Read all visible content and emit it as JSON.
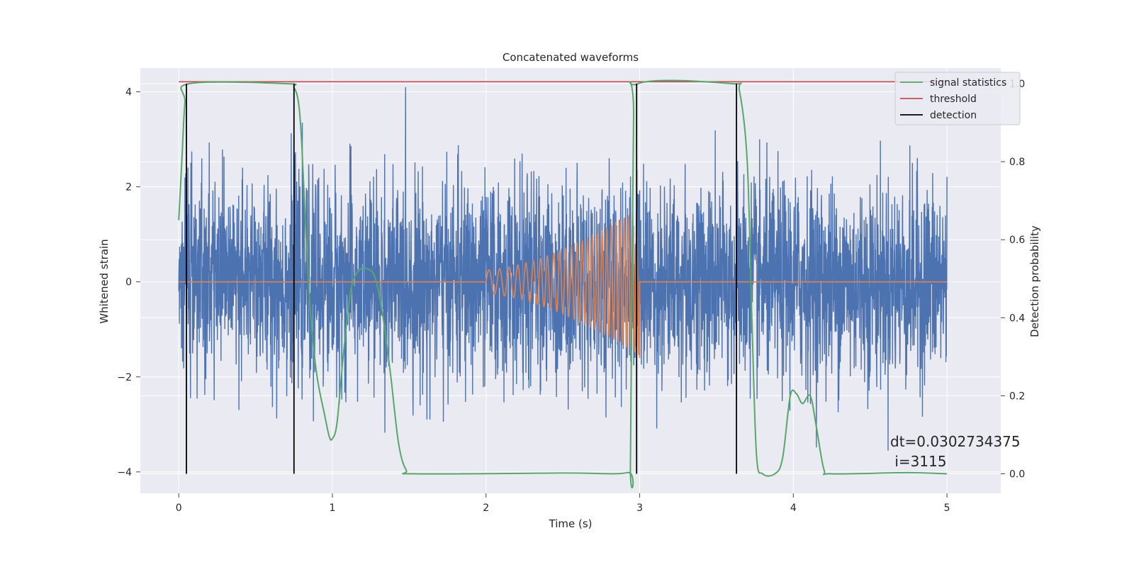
{
  "chart_data": {
    "type": "line",
    "title": "Concatenated waveforms",
    "xlabel": "Time (s)",
    "ylabel": "Whitened strain",
    "ylabel_right": "Detection probability",
    "xlim": [
      -0.25,
      5.35
    ],
    "ylim": [
      -4.45,
      4.5
    ],
    "ylim_right": [
      -0.05,
      1.04
    ],
    "xticks": [
      0,
      1,
      2,
      3,
      4,
      5
    ],
    "yticks": [
      -4,
      -2,
      0,
      2,
      4
    ],
    "yticks_right": [
      0.0,
      0.2,
      0.4,
      0.6,
      0.8,
      1.0
    ],
    "ytick_labels": [
      "−4",
      "−2",
      "0",
      "2",
      "4"
    ],
    "yticks_right_labels": [
      "0.0",
      "0.2",
      "0.4",
      "0.6",
      "0.8",
      "1.0"
    ],
    "grid": true,
    "legend_position": "top-right",
    "legend": [
      "signal statistics",
      "threshold",
      "detection"
    ],
    "colors": {
      "strain": "#4c72b0",
      "template": "#dd8452",
      "signal_statistics": "#55a868",
      "threshold": "#c44e52",
      "detection": "#000000",
      "background": "#eaeaf2",
      "grid": "#ffffff"
    },
    "series": [
      {
        "axis": "left",
        "role": "whitened strain noise",
        "color": "#4c72b0",
        "t_range": [
          0,
          5
        ],
        "amplitude_envelope": [
          -3.9,
          4.1
        ]
      },
      {
        "axis": "left",
        "role": "injected chirp",
        "color": "#dd8452",
        "chirp": {
          "t_start": 2.0,
          "t_end": 3.0,
          "amplitude_start": 0.25,
          "amplitude_end": 1.55,
          "value_outside": 0
        }
      },
      {
        "name": "signal statistics",
        "axis": "right",
        "color": "#55a868",
        "points": [
          [
            0.0,
            0.65
          ],
          [
            0.02,
            0.8
          ],
          [
            0.04,
            0.95
          ],
          [
            0.07,
            1.0
          ],
          [
            0.7,
            1.0
          ],
          [
            0.75,
            0.99
          ],
          [
            0.78,
            0.95
          ],
          [
            0.8,
            0.85
          ],
          [
            0.83,
            0.6
          ],
          [
            0.86,
            0.4
          ],
          [
            0.9,
            0.25
          ],
          [
            0.95,
            0.15
          ],
          [
            0.98,
            0.095
          ],
          [
            1.0,
            0.09
          ],
          [
            1.03,
            0.13
          ],
          [
            1.07,
            0.3
          ],
          [
            1.12,
            0.47
          ],
          [
            1.17,
            0.52
          ],
          [
            1.23,
            0.525
          ],
          [
            1.28,
            0.5
          ],
          [
            1.33,
            0.4
          ],
          [
            1.38,
            0.25
          ],
          [
            1.43,
            0.08
          ],
          [
            1.48,
            0.01
          ],
          [
            1.55,
            0.0
          ],
          [
            2.5,
            0.002
          ],
          [
            2.92,
            0.003
          ],
          [
            2.94,
            0.04
          ],
          [
            2.96,
            0.9
          ],
          [
            2.99,
            1.0
          ],
          [
            3.6,
            1.0
          ],
          [
            3.65,
            0.98
          ],
          [
            3.7,
            0.8
          ],
          [
            3.73,
            0.4
          ],
          [
            3.76,
            0.05
          ],
          [
            3.8,
            0.0
          ],
          [
            3.88,
            0.0
          ],
          [
            3.93,
            0.04
          ],
          [
            3.98,
            0.2
          ],
          [
            4.02,
            0.205
          ],
          [
            4.06,
            0.18
          ],
          [
            4.11,
            0.2
          ],
          [
            4.15,
            0.12
          ],
          [
            4.2,
            0.01
          ],
          [
            4.25,
            0.0
          ],
          [
            4.75,
            0.003
          ],
          [
            5.0,
            0.0
          ]
        ]
      },
      {
        "name": "threshold",
        "axis": "right",
        "color": "#c44e52",
        "points": [
          [
            0.0,
            1.005
          ],
          [
            5.0,
            1.005
          ]
        ]
      },
      {
        "name": "detection",
        "axis": "right",
        "color": "#000000",
        "x": [
          0.05,
          0.75,
          2.98,
          3.63
        ],
        "y_range": [
          0.0,
          1.0
        ]
      }
    ],
    "annotation": {
      "line1": "dt=0.0302734375",
      "line2": " i=3115",
      "position": "lower-right"
    }
  }
}
